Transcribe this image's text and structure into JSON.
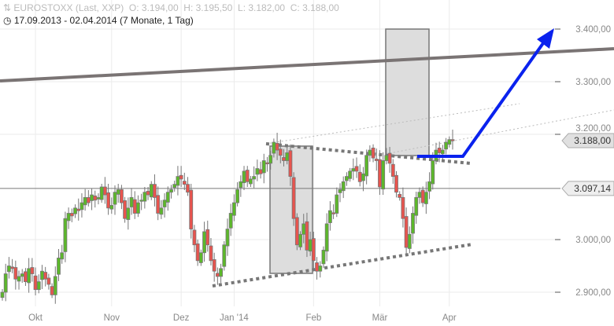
{
  "header": {
    "title": "EUROSTOXX (Last, XXP)",
    "open": "O: 3.194,00",
    "high": "H: 3.195,50",
    "low": "L: 3.182,00",
    "close": "C: 3.188,00",
    "range": "17.09.2013 - 02.04.2014 (7 Monate, 1 Tag)"
  },
  "chart_data": {
    "type": "candlestick",
    "ylim": [
      2880,
      3420
    ],
    "y_ticks": [
      {
        "value": 3400,
        "label": "3.400,00"
      },
      {
        "value": 3300,
        "label": "3.300,00"
      },
      {
        "value": 3200,
        "label": "3.200,00"
      },
      {
        "value": 3000,
        "label": "3.000,00"
      },
      {
        "value": 2900,
        "label": "2.900,00"
      }
    ],
    "x_ticks": [
      {
        "index": 10,
        "label": "Okt"
      },
      {
        "index": 33,
        "label": "Nov"
      },
      {
        "index": 54,
        "label": "Dez"
      },
      {
        "index": 70,
        "label": "Jan '14"
      },
      {
        "index": 94,
        "label": "Feb"
      },
      {
        "index": 114,
        "label": "Mär"
      },
      {
        "index": 135,
        "label": "Apr"
      }
    ],
    "close": [
      2900,
      2935,
      2950,
      2945,
      2925,
      2930,
      2935,
      2920,
      2945,
      2935,
      2905,
      2920,
      2940,
      2925,
      2915,
      2895,
      2930,
      2965,
      2975,
      3040,
      3050,
      3045,
      3060,
      3055,
      3070,
      3080,
      3070,
      3085,
      3075,
      3080,
      3100,
      3085,
      3060,
      3065,
      3090,
      3095,
      3070,
      3040,
      3060,
      3080,
      3050,
      3070,
      3075,
      3090,
      3085,
      3105,
      3080,
      3050,
      3060,
      3075,
      3090,
      3095,
      3105,
      3120,
      3115,
      3105,
      3090,
      3020,
      2990,
      2960,
      2975,
      3015,
      2990,
      2960,
      2940,
      2930,
      2945,
      2990,
      3020,
      3050,
      3070,
      3095,
      3110,
      3130,
      3110,
      3115,
      3120,
      3135,
      3125,
      3150,
      3145,
      3160,
      3185,
      3170,
      3160,
      3150,
      3165,
      3120,
      3040,
      2990,
      3010,
      3030,
      2980,
      3000,
      2960,
      2940,
      2950,
      2980,
      3030,
      3055,
      3050,
      3085,
      3095,
      3110,
      3120,
      3130,
      3135,
      3130,
      3110,
      3125,
      3160,
      3170,
      3155,
      3150,
      3100,
      3150,
      3160,
      3145,
      3120,
      3090,
      3080,
      3040,
      2985,
      3010,
      3050,
      3080,
      3090,
      3070,
      3090,
      3110,
      3150,
      3170,
      3165,
      3170,
      3185,
      3190,
      3188
    ],
    "last_price": {
      "value": 3188.0,
      "label": "3.188,00"
    },
    "reference_line": {
      "value": 3097.14,
      "label": "3.097,14"
    },
    "colors": {
      "up": "#5cb82a",
      "down": "#e8544e",
      "wick": "#777777",
      "arrow": "#0a22ee",
      "trend": "#7a7474",
      "box": "#dddddd"
    }
  }
}
